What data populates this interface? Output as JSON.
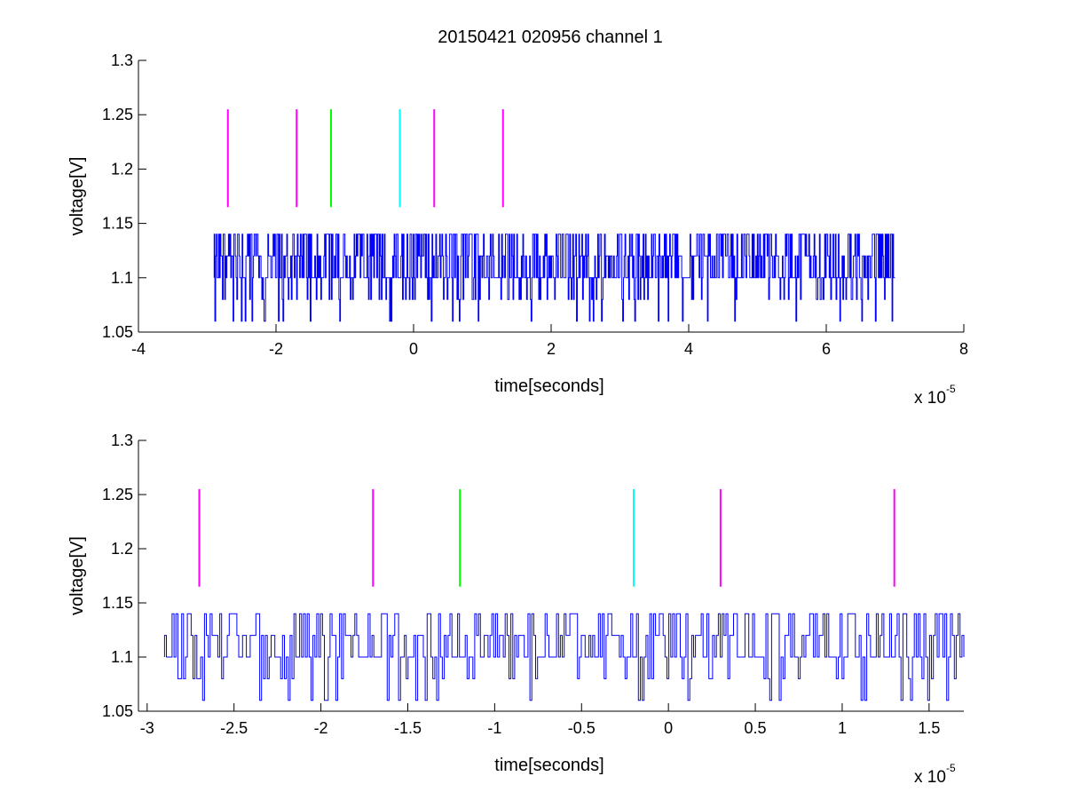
{
  "title": "20150421 020956 channel 1",
  "colors": {
    "signal": "#0000ff",
    "magenta": "#ff00ff",
    "green": "#00ff00",
    "cyan": "#00ffff"
  },
  "chart_data": [
    {
      "type": "line",
      "xlabel": "time[seconds]",
      "ylabel": "voltage[V]",
      "exponent_base": "x 10",
      "exponent_power": "-5",
      "xlim": [
        -4,
        8
      ],
      "ylim": [
        1.05,
        1.3
      ],
      "xticks": [
        -4,
        -2,
        0,
        2,
        4,
        6,
        8
      ],
      "xtick_labels": [
        "-4",
        "-2",
        "0",
        "2",
        "4",
        "6",
        "8"
      ],
      "yticks": [
        1.05,
        1.1,
        1.15,
        1.2,
        1.25,
        1.3
      ],
      "ytick_labels": [
        "1.05",
        "1.1",
        "1.15",
        "1.2",
        "1.25",
        "1.3"
      ],
      "grid": false,
      "signal": {
        "x_start": -2.9,
        "x_end": 7.0,
        "baseline": 1.1,
        "levels": [
          1.06,
          1.08,
          1.1,
          1.12,
          1.14
        ]
      },
      "markers": [
        {
          "x": -2.7,
          "y_from": 1.165,
          "y_to": 1.255,
          "color": "magenta"
        },
        {
          "x": -1.7,
          "y_from": 1.165,
          "y_to": 1.255,
          "color": "magenta"
        },
        {
          "x": -1.2,
          "y_from": 1.165,
          "y_to": 1.255,
          "color": "green"
        },
        {
          "x": -0.2,
          "y_from": 1.165,
          "y_to": 1.255,
          "color": "cyan"
        },
        {
          "x": 0.3,
          "y_from": 1.165,
          "y_to": 1.255,
          "color": "magenta"
        },
        {
          "x": 1.3,
          "y_from": 1.165,
          "y_to": 1.255,
          "color": "magenta"
        }
      ]
    },
    {
      "type": "line",
      "xlabel": "time[seconds]",
      "ylabel": "voltage[V]",
      "exponent_base": "x 10",
      "exponent_power": "-5",
      "xlim": [
        -3.05,
        1.7
      ],
      "ylim": [
        1.05,
        1.3
      ],
      "xticks": [
        -3,
        -2.5,
        -2,
        -1.5,
        -1,
        -0.5,
        0,
        0.5,
        1,
        1.5
      ],
      "xtick_labels": [
        "-3",
        "-2.5",
        "-2",
        "-1.5",
        "-1",
        "-0.5",
        "0",
        "0.5",
        "1",
        "1.5"
      ],
      "yticks": [
        1.05,
        1.1,
        1.15,
        1.2,
        1.25,
        1.3
      ],
      "ytick_labels": [
        "1.05",
        "1.1",
        "1.15",
        "1.2",
        "1.25",
        "1.3"
      ],
      "grid": false,
      "signal": {
        "x_start": -2.9,
        "x_end": 1.7,
        "baseline": 1.1,
        "levels": [
          1.06,
          1.08,
          1.1,
          1.12,
          1.14
        ]
      },
      "markers": [
        {
          "x": -2.7,
          "y_from": 1.165,
          "y_to": 1.255,
          "color": "magenta"
        },
        {
          "x": -1.7,
          "y_from": 1.165,
          "y_to": 1.255,
          "color": "magenta"
        },
        {
          "x": -1.2,
          "y_from": 1.165,
          "y_to": 1.255,
          "color": "green"
        },
        {
          "x": -0.2,
          "y_from": 1.165,
          "y_to": 1.255,
          "color": "cyan"
        },
        {
          "x": 0.3,
          "y_from": 1.165,
          "y_to": 1.255,
          "color": "magenta"
        },
        {
          "x": 1.3,
          "y_from": 1.165,
          "y_to": 1.255,
          "color": "magenta"
        }
      ]
    }
  ]
}
